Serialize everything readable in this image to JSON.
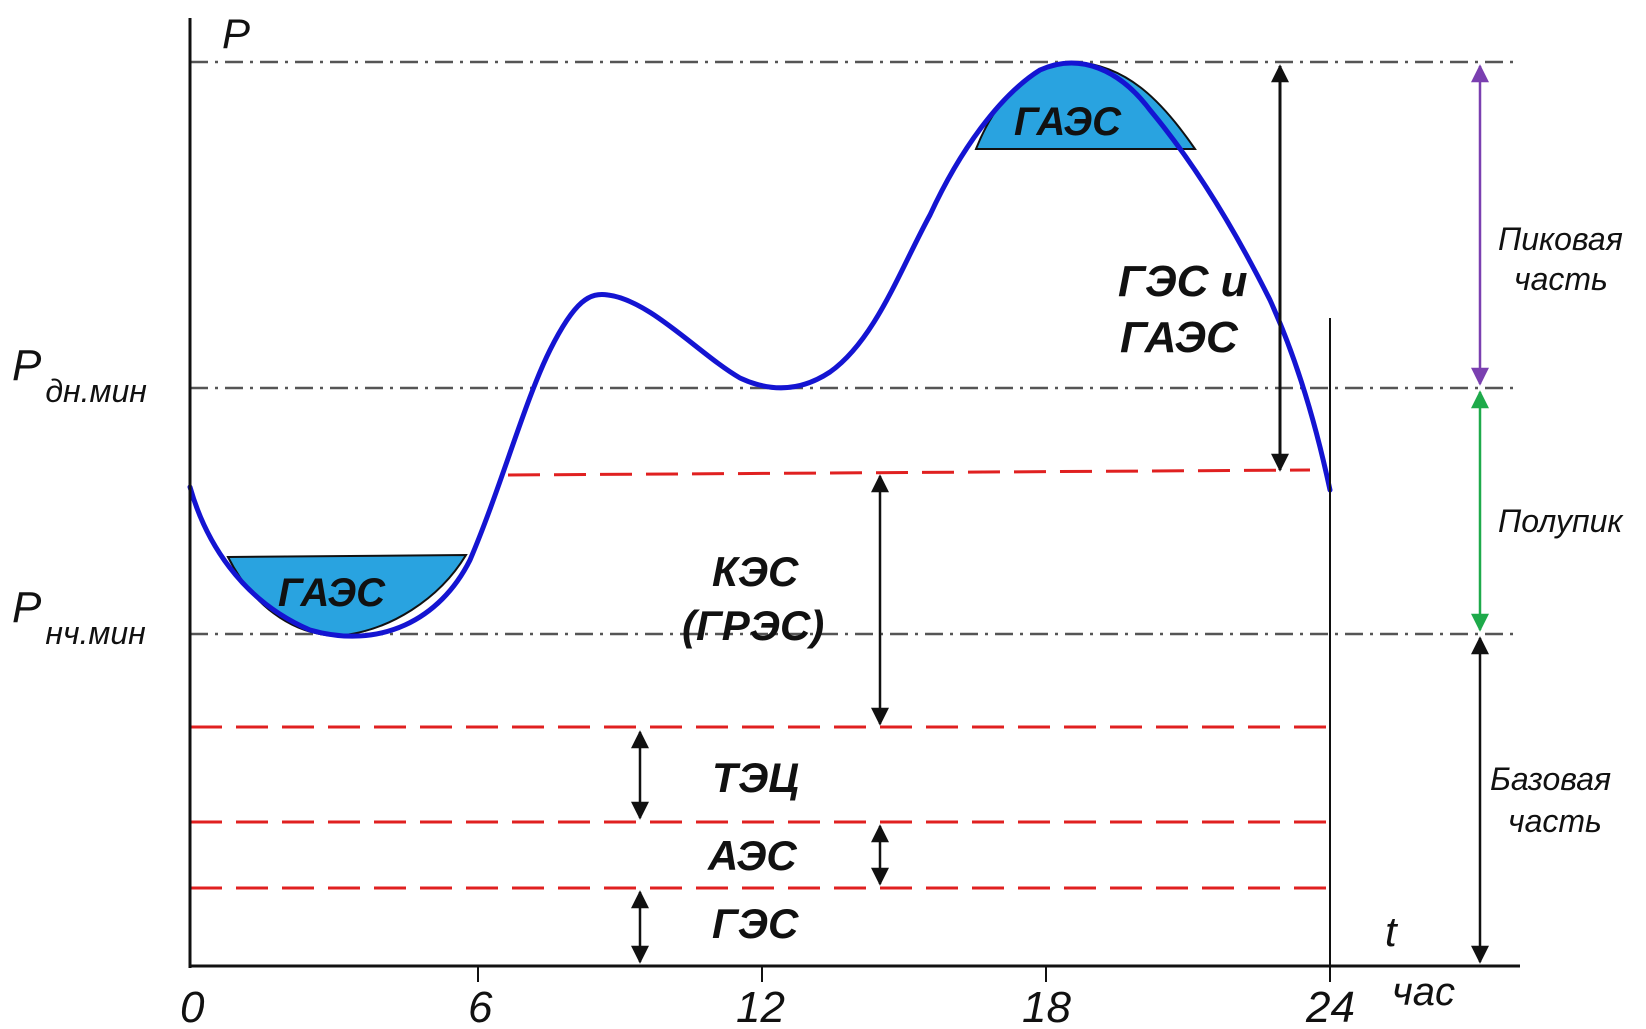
{
  "axes": {
    "y_label": "P",
    "x_label": "t",
    "x_unit": "час",
    "x_ticks": [
      "0",
      "6",
      "12",
      "18",
      "24"
    ]
  },
  "levels": {
    "p_day_min_main": "P",
    "p_day_min_sub": "дн.мин",
    "p_night_min_main": "P",
    "p_night_min_sub": "нч.мин"
  },
  "stations": {
    "gaes_top": "ГАЭС",
    "gaes_bottom": "ГАЭС",
    "ges_gaes_line1": "ГЭС и",
    "ges_gaes_line2": "ГАЭС",
    "kes_line1": "КЭС",
    "kes_line2": "(ГРЭС)",
    "tec": "ТЭЦ",
    "aes": "АЭС",
    "ges": "ГЭС"
  },
  "zones": {
    "peak_line1": "Пиковая",
    "peak_line2": "часть",
    "semi_peak": "Полупик",
    "base_line1": "Базовая",
    "base_line2": "часть"
  },
  "colors": {
    "load_curve": "#1414d2",
    "storage_fill": "#29a3e0",
    "station_boundary": "#e02020",
    "peak_arrow": "#7a3fb0",
    "semi_peak_arrow": "#1eaa4a",
    "axis": "#111111",
    "guide_line": "#555555"
  }
}
